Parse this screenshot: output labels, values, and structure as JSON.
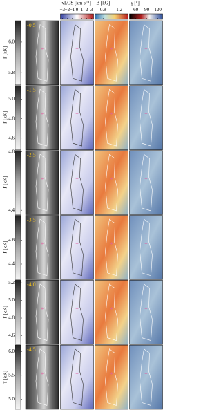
{
  "columns": [
    {
      "label": "vLOS [km s⁻¹]",
      "xlim": [
        -3.4,
        3.4
      ],
      "ticks": [
        {
          "value": -3,
          "label": "−3"
        },
        {
          "value": -2,
          "label": "−2"
        },
        {
          "value": -1,
          "label": "−1"
        },
        0,
        1,
        2,
        3
      ]
    },
    {
      "label": "B [kG]",
      "xlim": [
        0.6,
        1.42
      ],
      "ticks": [
        0.8,
        1.2
      ]
    },
    {
      "label": "γ [°]",
      "xlim": [
        43,
        133
      ],
      "ticks": [
        60,
        90,
        120
      ]
    }
  ],
  "rows": [
    {
      "label": "-0.5",
      "y_label": "T [kK]",
      "ylim": [
        5.72,
        6.14
      ],
      "yticks": [
        {
          "value": 6,
          "label": "6.0"
        },
        5.8
      ]
    },
    {
      "label": "-1.5",
      "y_label": "T [kK]",
      "ylim": [
        4.48,
        5.14
      ],
      "yticks": [
        {
          "value": 5,
          "label": "5.0"
        },
        4.8,
        4.6
      ]
    },
    {
      "label": "-2.5",
      "y_label": "T [kK]",
      "ylim": [
        4.37,
        4.81
      ],
      "yticks": [
        4.8,
        4.4
      ]
    },
    {
      "label": "-3.5",
      "y_label": "T [kK]",
      "ylim": [
        4.27,
        4.81
      ],
      "yticks": [
        4.6,
        4.4
      ]
    },
    {
      "label": "-4.0",
      "y_label": "T [kK]",
      "ylim": [
        4.5,
        5.23
      ],
      "yticks": [
        5.2,
        {
          "value": 5,
          "label": "5.0"
        },
        4.8,
        4.6
      ]
    },
    {
      "label": "-4.5",
      "y_label": "T [kK]",
      "ylim": [
        4.79,
        6.13
      ],
      "yticks": [
        {
          "value": 6,
          "label": "6.0"
        },
        5.5,
        {
          "value": 5,
          "label": "5.0"
        }
      ]
    }
  ]
}
